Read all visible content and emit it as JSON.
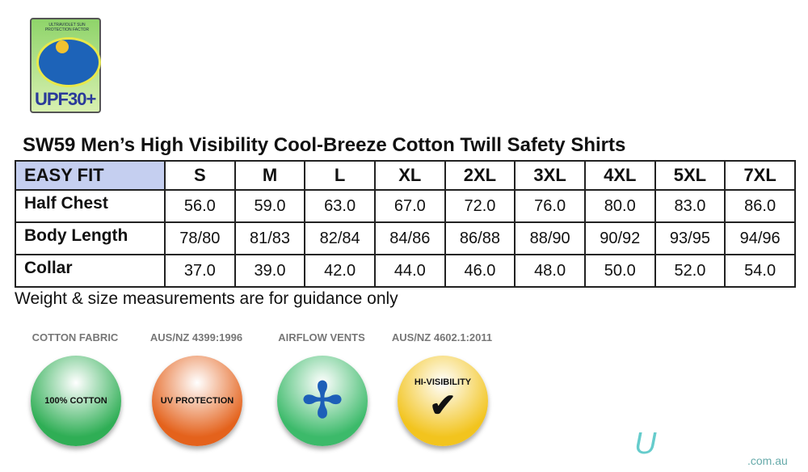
{
  "upf_logo": {
    "top_text": "ULTRAVIOLET SUN PROTECTION FACTOR",
    "label": "UPF30+"
  },
  "title": "SW59 Men’s High Visibility Cool-Breeze Cotton Twill Safety Shirts",
  "table": {
    "header": [
      "EASY FIT",
      "S",
      "M",
      "L",
      "XL",
      "2XL",
      "3XL",
      "4XL",
      "5XL",
      "7XL"
    ],
    "rows": [
      {
        "label": "Half Chest",
        "values": [
          "56.0",
          "59.0",
          "63.0",
          "67.0",
          "72.0",
          "76.0",
          "80.0",
          "83.0",
          "86.0"
        ]
      },
      {
        "label": "Body Length",
        "values": [
          "78/80",
          "81/83",
          "82/84",
          "84/86",
          "86/88",
          "88/90",
          "90/92",
          "93/95",
          "94/96"
        ]
      },
      {
        "label": "Collar",
        "values": [
          "37.0",
          "39.0",
          "42.0",
          "44.0",
          "46.0",
          "48.0",
          "50.0",
          "52.0",
          "54.0"
        ]
      }
    ]
  },
  "note": "Weight & size measurements are for guidance only",
  "badges": [
    {
      "arc": "COTTON FABRIC",
      "inner": "100% COTTON",
      "color": "#2fae55"
    },
    {
      "arc": "AUS/NZ 4399:1996",
      "inner": "UV PROTECTION",
      "color": "#e4621c"
    },
    {
      "arc": "AIRFLOW VENTS",
      "inner": "",
      "color": "#3cba6a"
    },
    {
      "arc": "AUS/NZ 4602.1:2011",
      "inner": "HI-VISIBILITY",
      "color": "#f2c41e"
    }
  ],
  "watermark": {
    "domain": ".com.au"
  }
}
